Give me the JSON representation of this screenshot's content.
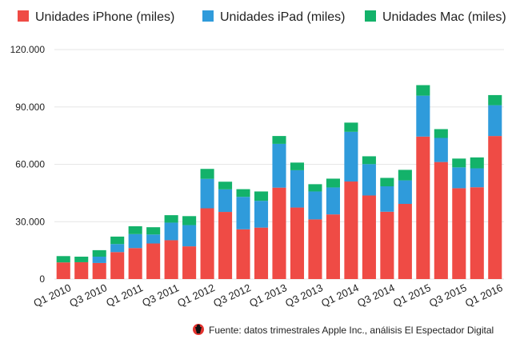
{
  "colors": {
    "iphone": "#EF4B45",
    "ipad": "#2F9BDB",
    "mac": "#13B26A",
    "grid": "#e6e6e6",
    "text": "#222222"
  },
  "source_text": "Fuente: datos trimestrales Apple Inc., análisis El Espectador Digital",
  "chart_data": {
    "type": "bar",
    "stacked": true,
    "legend_position": "top",
    "grid": true,
    "ylim": [
      0,
      120000
    ],
    "yticks": [
      0,
      30000,
      60000,
      90000,
      120000
    ],
    "ytick_labels": [
      "0",
      "30.000",
      "60.000",
      "90.000",
      "120.000"
    ],
    "categories": [
      "Q1 2010",
      "Q2 2010",
      "Q3 2010",
      "Q4 2010",
      "Q1 2011",
      "Q2 2011",
      "Q3 2011",
      "Q4 2011",
      "Q1 2012",
      "Q2 2012",
      "Q3 2012",
      "Q4 2012",
      "Q1 2013",
      "Q2 2013",
      "Q3 2013",
      "Q4 2013",
      "Q1 2014",
      "Q2 2014",
      "Q3 2014",
      "Q4 2014",
      "Q1 2015",
      "Q2 2015",
      "Q3 2015",
      "Q4 2015",
      "Q1 2016"
    ],
    "xtick_labels": [
      "Q1 2010",
      "Q3 2010",
      "Q1 2011",
      "Q3 2011",
      "Q1 2012",
      "Q3 2012",
      "Q1 2013",
      "Q3 2013",
      "Q1 2014",
      "Q3 2014",
      "Q1 2015",
      "Q3 2015",
      "Q1 2016"
    ],
    "series": [
      {
        "name": "Unidades iPhone (miles)",
        "color_key": "iphone",
        "values": [
          8700,
          8800,
          8400,
          14100,
          16200,
          18600,
          20300,
          17100,
          37000,
          35100,
          26000,
          26900,
          47800,
          37400,
          31200,
          33800,
          51000,
          43700,
          35200,
          39300,
          74500,
          61200,
          47500,
          48000,
          74800
        ]
      },
      {
        "name": "Unidades iPad (miles)",
        "color_key": "ipad",
        "values": [
          0,
          0,
          3300,
          4200,
          7300,
          4700,
          9200,
          11100,
          15400,
          11800,
          17000,
          14000,
          22900,
          19500,
          14600,
          14100,
          26000,
          16400,
          13300,
          12300,
          21400,
          12600,
          10900,
          9900,
          16100
        ]
      },
      {
        "name": "Unidades Mac (miles)",
        "color_key": "mac",
        "values": [
          3300,
          2900,
          3400,
          3900,
          4100,
          3800,
          3900,
          4700,
          5200,
          4000,
          4000,
          4900,
          4100,
          4000,
          3800,
          4600,
          4800,
          4100,
          4400,
          5500,
          5500,
          4600,
          4600,
          5700,
          5300
        ]
      }
    ]
  }
}
